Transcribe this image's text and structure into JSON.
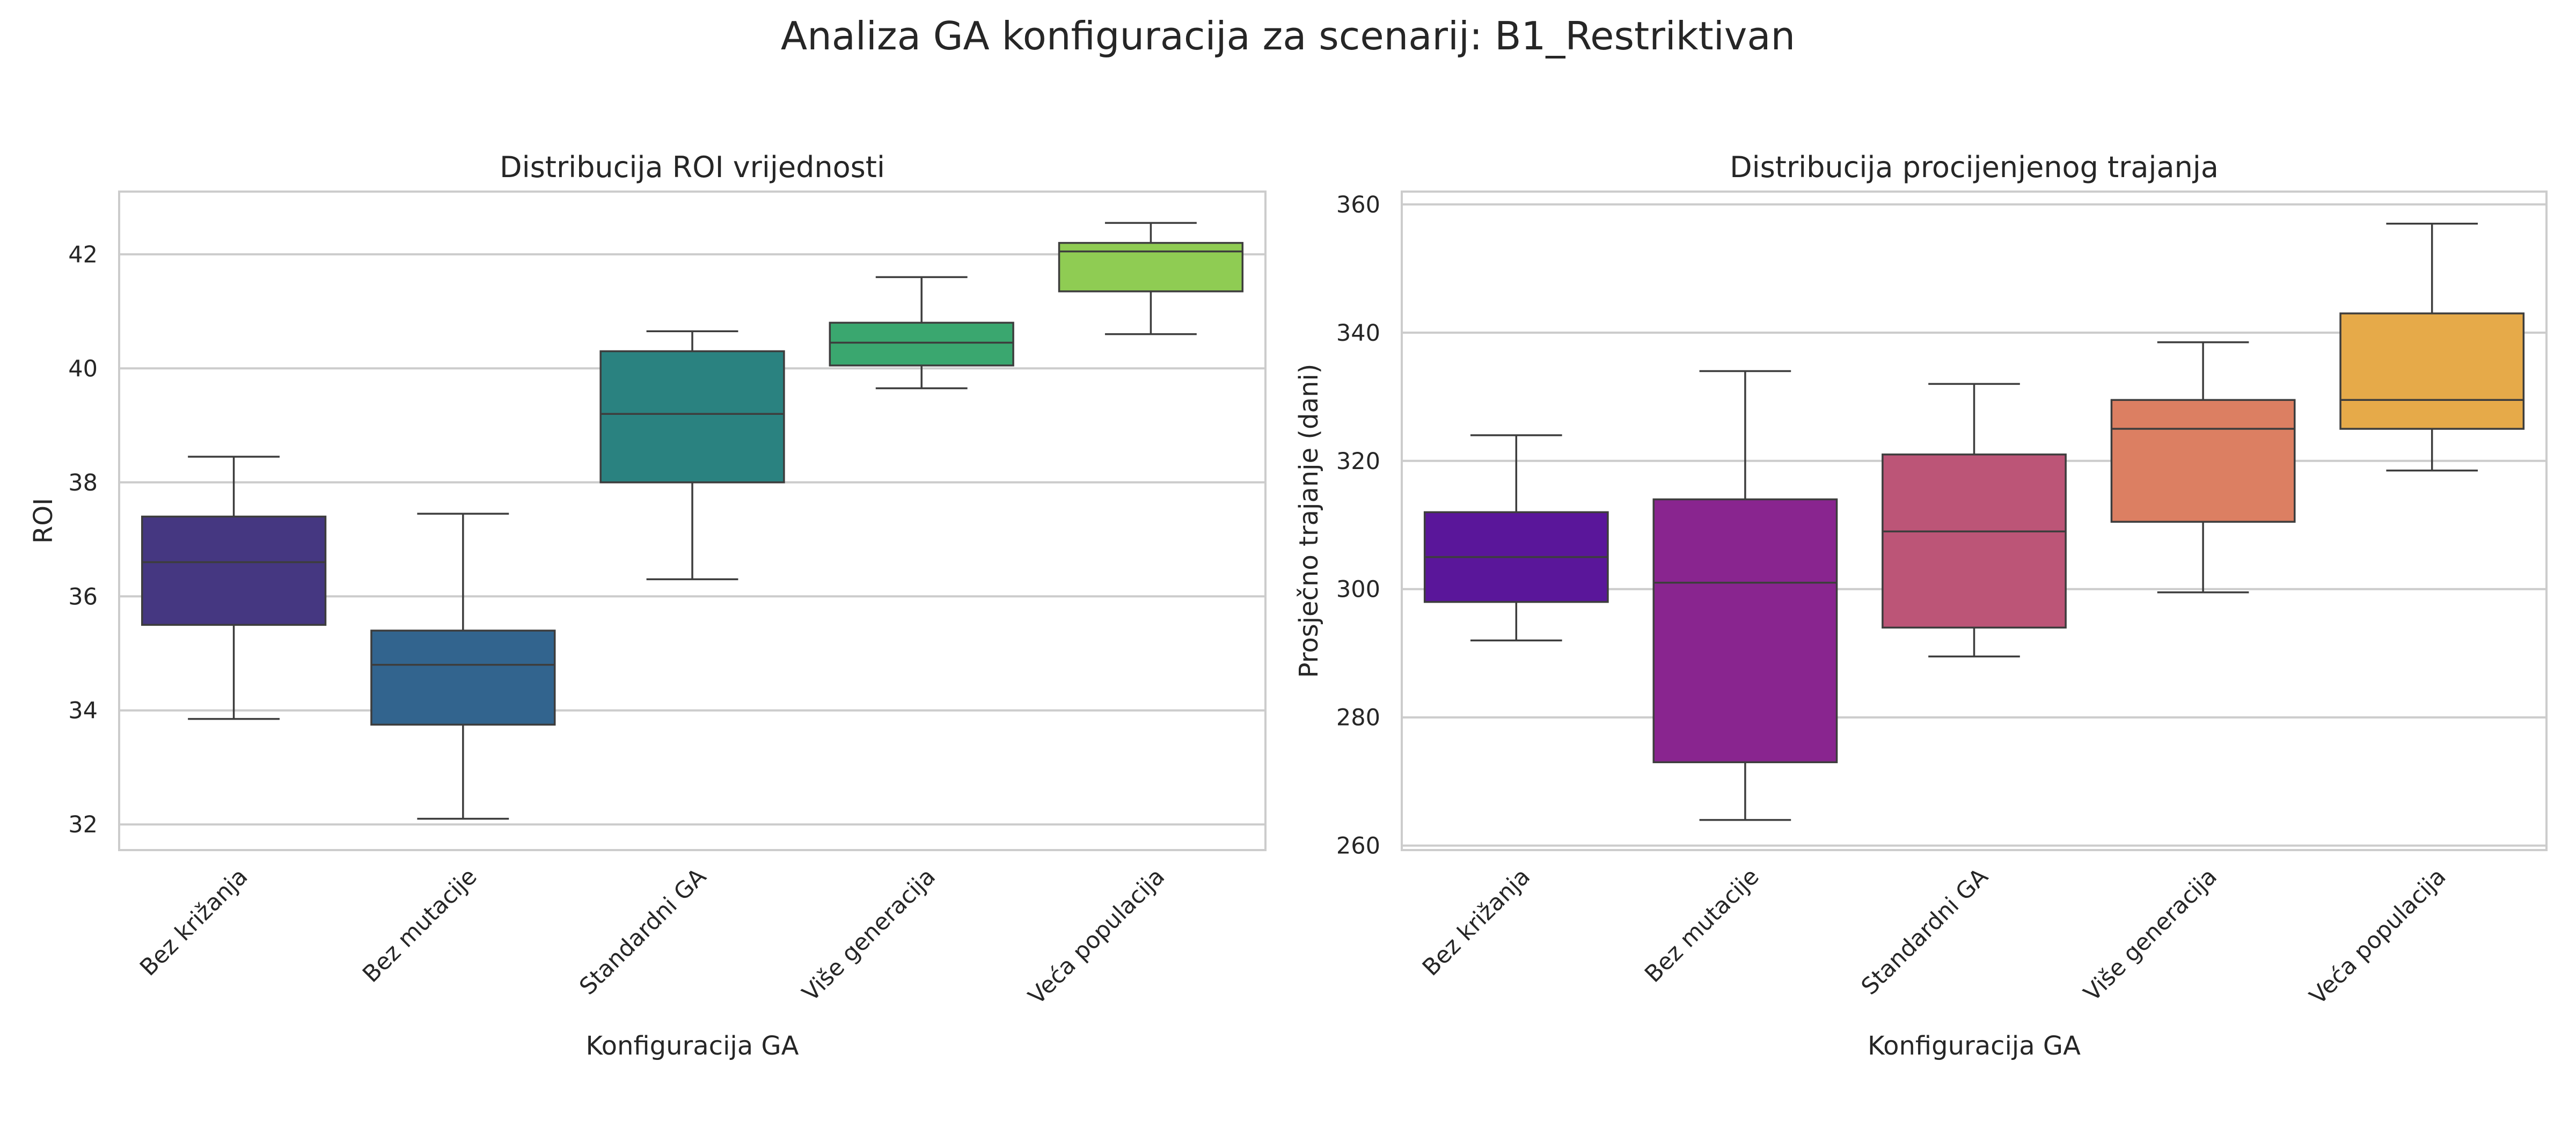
{
  "figure": {
    "title": "Analiza GA konfiguracija za scenarij: B1_Restriktivan"
  },
  "chart_data": [
    {
      "type": "box",
      "title": "Distribucija ROI vrijednosti",
      "xlabel": "Konfiguracija GA",
      "ylabel": "ROI",
      "ylim": [
        31.55,
        43.1
      ],
      "yticks": [
        32,
        34,
        36,
        38,
        40,
        42
      ],
      "grid": true,
      "categories": [
        "Bez križanja",
        "Bez mutacije",
        "Standardni GA",
        "Više generacija",
        "Veća populacija"
      ],
      "colors": [
        "#453781",
        "#32648e",
        "#2a8280",
        "#3aa76f",
        "#8fcc53"
      ],
      "boxes": [
        {
          "whisker_low": 33.85,
          "q1": 35.5,
          "median": 36.6,
          "q3": 37.4,
          "whisker_high": 38.45
        },
        {
          "whisker_low": 32.1,
          "q1": 33.75,
          "median": 34.8,
          "q3": 35.4,
          "whisker_high": 37.45
        },
        {
          "whisker_low": 36.3,
          "q1": 38.0,
          "median": 39.2,
          "q3": 40.3,
          "whisker_high": 40.65
        },
        {
          "whisker_low": 39.65,
          "q1": 40.05,
          "median": 40.45,
          "q3": 40.8,
          "whisker_high": 41.6
        },
        {
          "whisker_low": 40.6,
          "q1": 41.35,
          "median": 42.05,
          "q3": 42.2,
          "whisker_high": 42.55
        }
      ]
    },
    {
      "type": "box",
      "title": "Distribucija procijenjenog trajanja",
      "xlabel": "Konfiguracija GA",
      "ylabel": "Prosječno trajanje (dani)",
      "ylim": [
        259.3,
        362.0
      ],
      "yticks": [
        260,
        280,
        300,
        320,
        340,
        360
      ],
      "grid": true,
      "categories": [
        "Bez križanja",
        "Bez mutacije",
        "Standardni GA",
        "Više generacija",
        "Veća populacija"
      ],
      "colors": [
        "#5a169a",
        "#89258f",
        "#bc5577",
        "#dc7f62",
        "#e6aa49"
      ],
      "boxes": [
        {
          "whisker_low": 292,
          "q1": 298,
          "median": 305,
          "q3": 312,
          "whisker_high": 324
        },
        {
          "whisker_low": 264,
          "q1": 273,
          "median": 301,
          "q3": 314,
          "whisker_high": 334
        },
        {
          "whisker_low": 289.5,
          "q1": 294,
          "median": 309,
          "q3": 321,
          "whisker_high": 332
        },
        {
          "whisker_low": 299.5,
          "q1": 310.5,
          "median": 325,
          "q3": 329.5,
          "whisker_high": 338.5
        },
        {
          "whisker_low": 318.5,
          "q1": 325,
          "median": 329.5,
          "q3": 343,
          "whisker_high": 357
        }
      ]
    }
  ]
}
